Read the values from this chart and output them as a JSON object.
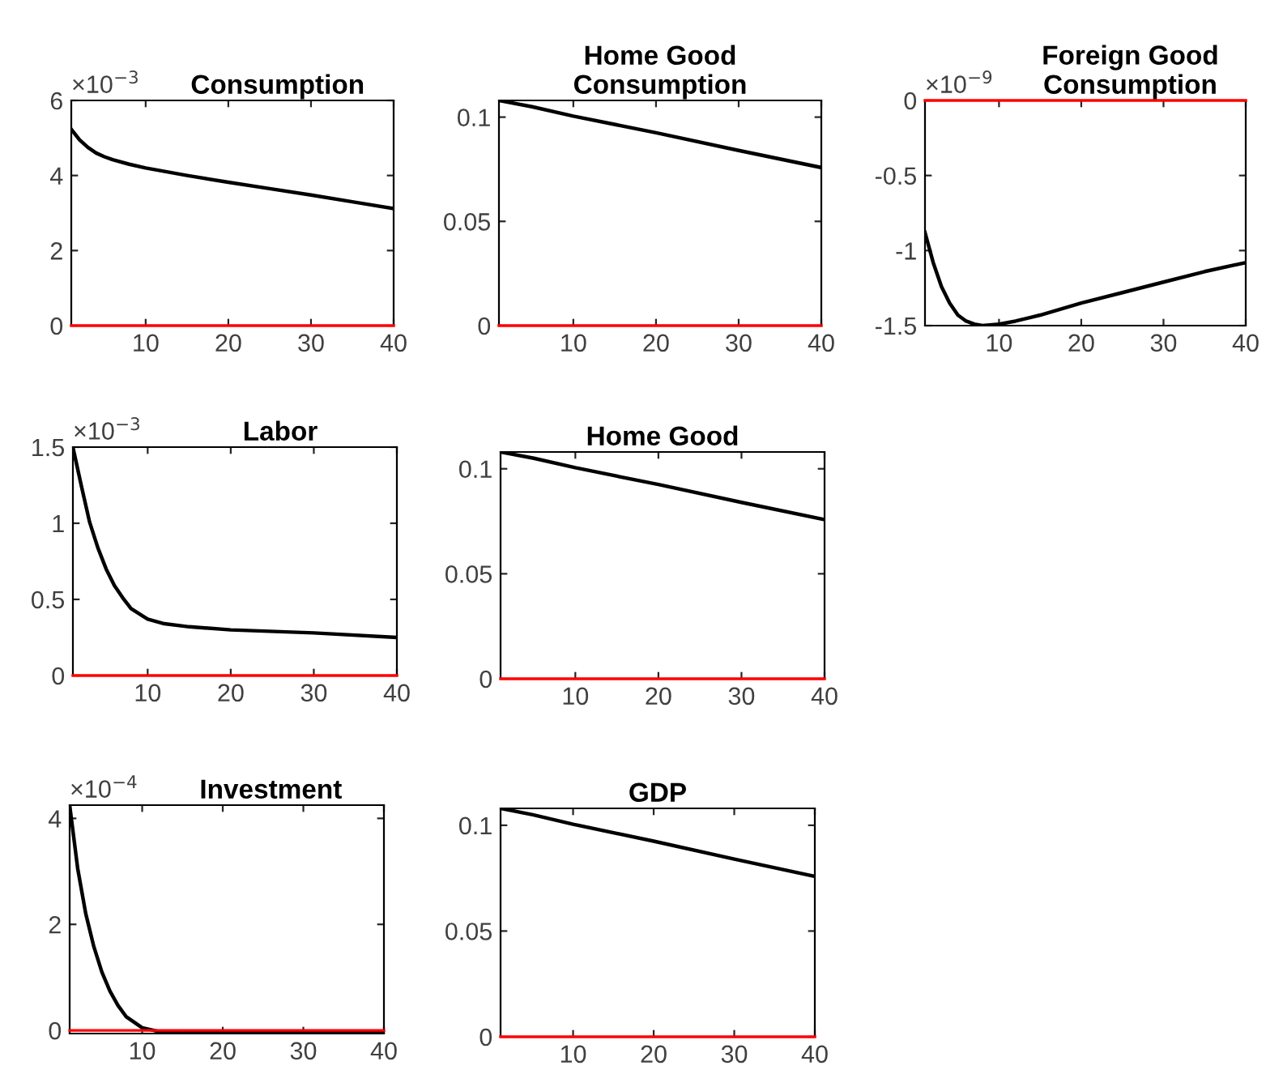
{
  "chart_data": [
    {
      "type": "line",
      "title": "Consumption",
      "annotations": [
        "×10$^{−3}$"
      ],
      "xlim": [
        1,
        40
      ],
      "xticks": [
        10,
        20,
        30,
        40
      ],
      "ylim": [
        0,
        6
      ],
      "yticks": [
        0,
        2,
        4,
        6
      ],
      "grid": false,
      "legend": false,
      "series": [
        {
          "color": "#000000",
          "x": [
            1,
            2,
            3,
            4,
            5,
            6,
            8,
            10,
            15,
            20,
            25,
            30,
            35,
            40
          ],
          "values": [
            5.23,
            4.95,
            4.75,
            4.6,
            4.5,
            4.42,
            4.3,
            4.2,
            4.0,
            3.82,
            3.65,
            3.48,
            3.3,
            3.12
          ]
        }
      ],
      "ref_lines": [
        {
          "axis": "y",
          "value": 0,
          "color": "#ff0000"
        }
      ]
    },
    {
      "type": "line",
      "title": "Home Good\nConsumption",
      "xlim": [
        1,
        40
      ],
      "xticks": [
        10,
        20,
        30,
        40
      ],
      "ylim": [
        0,
        0.108
      ],
      "yticks": [
        0,
        0.05,
        0.1
      ],
      "grid": false,
      "legend": false,
      "series": [
        {
          "color": "#000000",
          "x": [
            1,
            5,
            10,
            20,
            30,
            40
          ],
          "values": [
            0.108,
            0.105,
            0.1005,
            0.0925,
            0.084,
            0.0758
          ]
        }
      ],
      "ref_lines": [
        {
          "axis": "y",
          "value": 0,
          "color": "#ff0000"
        }
      ]
    },
    {
      "type": "line",
      "title": "Foreign Good\nConsumption",
      "annotations": [
        "×10$^{−9}$"
      ],
      "xlim": [
        1,
        40
      ],
      "xticks": [
        10,
        20,
        30,
        40
      ],
      "ylim": [
        -1.5,
        0
      ],
      "yticks": [
        -1.5,
        -1,
        -0.5,
        0
      ],
      "grid": false,
      "legend": false,
      "series": [
        {
          "color": "#000000",
          "x": [
            1,
            2,
            3,
            4,
            5,
            6,
            7,
            8,
            10,
            12,
            15,
            20,
            25,
            30,
            35,
            40
          ],
          "values": [
            -0.88,
            -1.08,
            -1.24,
            -1.35,
            -1.43,
            -1.47,
            -1.49,
            -1.5,
            -1.49,
            -1.47,
            -1.43,
            -1.35,
            -1.28,
            -1.21,
            -1.14,
            -1.08
          ]
        }
      ],
      "ref_lines": [
        {
          "axis": "y",
          "value": 0,
          "color": "#ff0000"
        }
      ]
    },
    {
      "type": "line",
      "title": "Labor",
      "annotations": [
        "×10$^{−3}$"
      ],
      "xlim": [
        1,
        40
      ],
      "xticks": [
        10,
        20,
        30,
        40
      ],
      "ylim": [
        0,
        1.5
      ],
      "yticks": [
        0,
        0.5,
        1,
        1.5
      ],
      "grid": false,
      "legend": false,
      "series": [
        {
          "color": "#000000",
          "x": [
            1,
            2,
            3,
            4,
            5,
            6,
            7,
            8,
            10,
            12,
            15,
            20,
            30,
            40
          ],
          "values": [
            1.5,
            1.25,
            1.01,
            0.84,
            0.7,
            0.59,
            0.51,
            0.44,
            0.37,
            0.34,
            0.32,
            0.3,
            0.28,
            0.25
          ]
        }
      ],
      "ref_lines": [
        {
          "axis": "y",
          "value": 0,
          "color": "#ff0000"
        }
      ]
    },
    {
      "type": "line",
      "title": "Home Good",
      "xlim": [
        1,
        40
      ],
      "xticks": [
        10,
        20,
        30,
        40
      ],
      "ylim": [
        0,
        0.108
      ],
      "yticks": [
        0,
        0.05,
        0.1
      ],
      "grid": false,
      "legend": false,
      "series": [
        {
          "color": "#000000",
          "x": [
            1,
            5,
            10,
            20,
            30,
            40
          ],
          "values": [
            0.108,
            0.105,
            0.1005,
            0.0925,
            0.084,
            0.0758
          ]
        }
      ],
      "ref_lines": [
        {
          "axis": "y",
          "value": 0,
          "color": "#ff0000"
        }
      ]
    },
    {
      "type": "line",
      "title": "Investment",
      "annotations": [
        "×10$^{−4}$"
      ],
      "xlim": [
        1,
        40
      ],
      "xticks": [
        10,
        20,
        30,
        40
      ],
      "ylim": [
        -0.06,
        4.25
      ],
      "yticks": [
        0,
        2,
        4
      ],
      "grid": false,
      "legend": false,
      "series": [
        {
          "color": "#000000",
          "x": [
            1,
            2,
            3,
            4,
            5,
            6,
            7,
            8,
            10,
            12,
            15,
            20,
            30,
            40
          ],
          "values": [
            4.25,
            3.05,
            2.2,
            1.58,
            1.1,
            0.74,
            0.47,
            0.26,
            0.05,
            -0.02,
            -0.05,
            -0.05,
            -0.04,
            -0.03
          ]
        }
      ],
      "ref_lines": [
        {
          "axis": "y",
          "value": 0,
          "color": "#ff0000"
        }
      ]
    },
    {
      "type": "line",
      "title": "GDP",
      "xlim": [
        1,
        40
      ],
      "xticks": [
        10,
        20,
        30,
        40
      ],
      "ylim": [
        0,
        0.108
      ],
      "yticks": [
        0,
        0.05,
        0.1
      ],
      "grid": false,
      "legend": false,
      "series": [
        {
          "color": "#000000",
          "x": [
            1,
            5,
            10,
            20,
            30,
            40
          ],
          "values": [
            0.108,
            0.105,
            0.1005,
            0.0925,
            0.084,
            0.0758
          ]
        }
      ],
      "ref_lines": [
        {
          "axis": "y",
          "value": 0,
          "color": "#ff0000"
        }
      ]
    }
  ]
}
